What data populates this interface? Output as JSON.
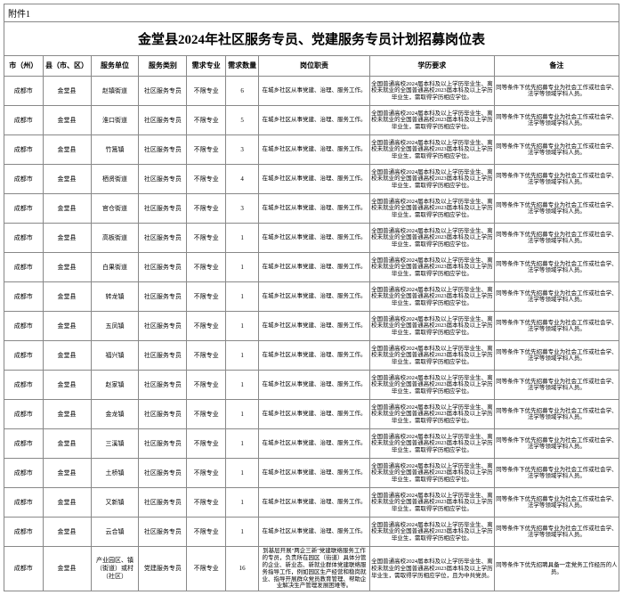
{
  "attachment_label": "附件1",
  "title": "金堂县2024年社区服务专员、党建服务专员计划招募岗位表",
  "headers": {
    "city": "市（州）",
    "county": "县（市、区）",
    "unit": "服务单位",
    "type": "服务类别",
    "major": "需求专业",
    "qty": "需求数量",
    "duty": "岗位职责",
    "edu": "学历要求",
    "note": "备注"
  },
  "common": {
    "city": "成都市",
    "county": "金堂县",
    "major": "不限专业",
    "type1": "社区服务专员",
    "type2": "党建服务专员",
    "duty1": "在城乡社区从事党建、治理、服务工作。",
    "edu1": "全国普通高校2024届本科及以上学历毕业生、离校未就业的全国普通高校2023届本科及以上学历毕业生，需取得学历相应学位。",
    "note1": "同等条件下优先招募专业为社会工作或社会学、法学等领域学科人员。"
  },
  "rows": [
    {
      "unit": "赵镇街道",
      "qty": "6"
    },
    {
      "unit": "淮口街道",
      "qty": "5"
    },
    {
      "unit": "竹篙镇",
      "qty": "3"
    },
    {
      "unit": "栖贤街道",
      "qty": "4"
    },
    {
      "unit": "官仓街道",
      "qty": "3"
    },
    {
      "unit": "高板街道",
      "qty": "1"
    },
    {
      "unit": "白果街道",
      "qty": "1"
    },
    {
      "unit": "转龙镇",
      "qty": "1"
    },
    {
      "unit": "五凤镇",
      "qty": "1"
    },
    {
      "unit": "福兴镇",
      "qty": "1"
    },
    {
      "unit": "赵家镇",
      "qty": "1"
    },
    {
      "unit": "金龙镇",
      "qty": "1"
    },
    {
      "unit": "三溪镇",
      "qty": "1"
    },
    {
      "unit": "土桥镇",
      "qty": "1"
    },
    {
      "unit": "又新镇",
      "qty": "1"
    },
    {
      "unit": "云合镇",
      "qty": "1"
    }
  ],
  "last_row": {
    "unit": "产业园区、镇（街道）或村（社区）",
    "qty": "16",
    "duty": "到基层开展\"两企三新\"党建联络服务工作的专员，负责所在园区（街道）具体分管的企业、新业态、新就业群体党建联络服务指导工作，例如园区生产经营和稳岗就业、指导开展群众党员教育管理、帮助企业解决生产管理发展困难等。",
    "edu": "全国普通高校2024届本科及以上学历毕业生、离校未就业的全国普通高校2023届本科及以上学历毕业生，需取得学历相应学位，且为中共党员。",
    "note": "同等条件下优先招聘具备一定党务工作经历的人员。"
  }
}
